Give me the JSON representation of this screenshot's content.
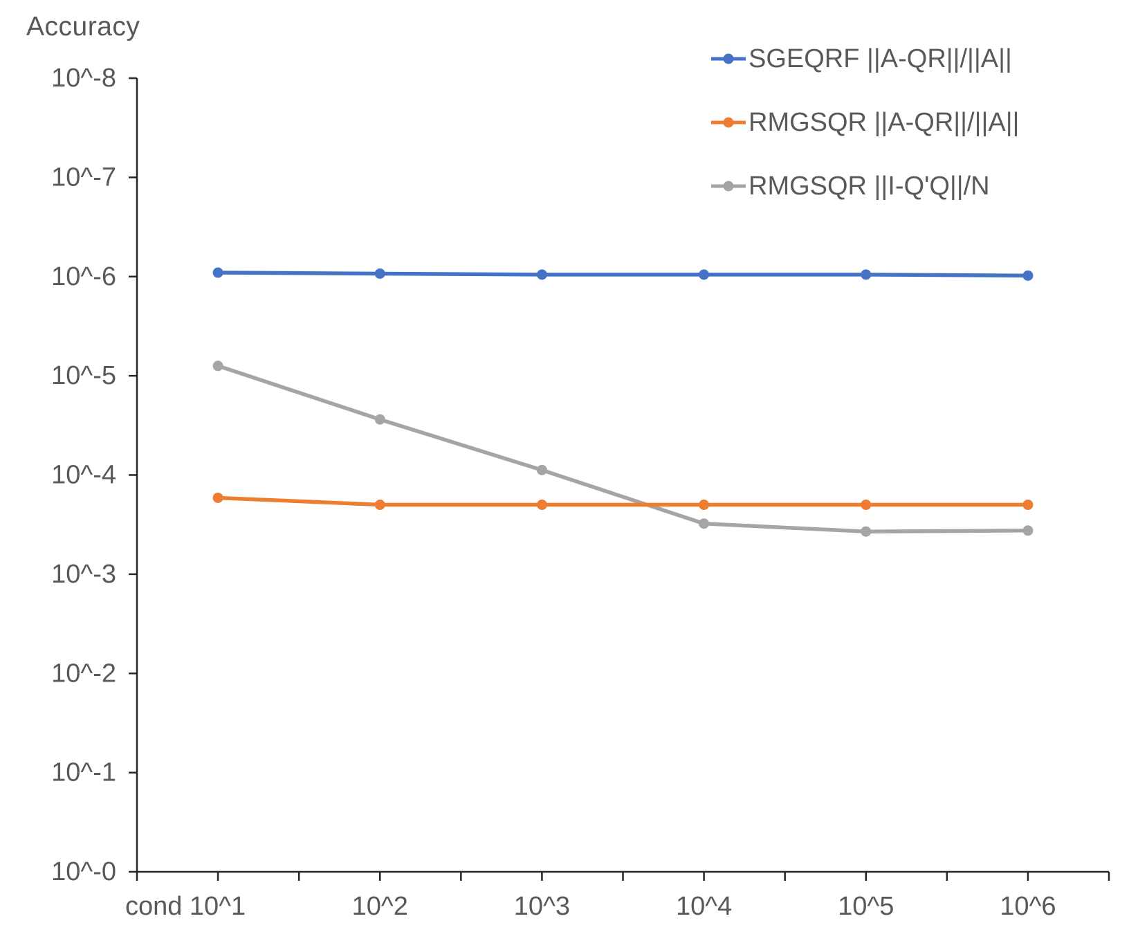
{
  "chart_data": {
    "type": "line",
    "title": "Accuracy",
    "xlabel": "",
    "ylabel": "Accuracy",
    "categories": [
      "cond 10^1",
      "10^2",
      "10^3",
      "10^4",
      "10^5",
      "10^6"
    ],
    "y_tick_labels": [
      "10^-8",
      "10^-7",
      "10^-6",
      "10^-5",
      "10^-4",
      "10^-3",
      "10^-2",
      "10^-1",
      "10^-0"
    ],
    "y_axis_log10_top_to_bottom": [
      -8,
      0
    ],
    "y_axis_inverted_log_scale": true,
    "grid": false,
    "legend_position": "top-right",
    "series": [
      {
        "name": "SGEQRF ||A-QR||/||A||",
        "color": "#4472C4",
        "marker": "circle",
        "values": [
          9.1e-07,
          9.4e-07,
          9.5e-07,
          9.6e-07,
          9.6e-07,
          9.7e-07
        ],
        "log10_values": [
          -6.04,
          -6.03,
          -6.02,
          -6.02,
          -6.02,
          -6.01
        ]
      },
      {
        "name": "RMGSQR ||A-QR||/||A||",
        "color": "#ED7D31",
        "marker": "circle",
        "values": [
          0.00017,
          0.0002,
          0.0002,
          0.0002,
          0.0002,
          0.0002
        ],
        "log10_values": [
          -3.77,
          -3.7,
          -3.7,
          -3.7,
          -3.7,
          -3.7
        ]
      },
      {
        "name": "RMGSQR ||I-Q'Q||/N",
        "color": "#A5A5A5",
        "marker": "circle",
        "values": [
          8e-06,
          2.7e-05,
          9e-05,
          0.00031,
          0.00037,
          0.00036
        ],
        "log10_values": [
          -5.1,
          -4.56,
          -4.05,
          -3.51,
          -3.43,
          -3.44
        ]
      }
    ]
  }
}
